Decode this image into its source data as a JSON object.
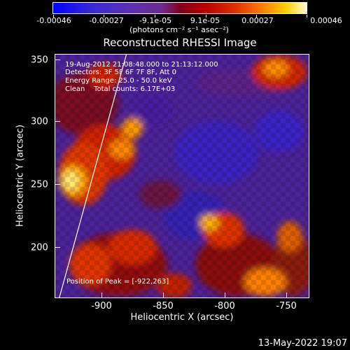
{
  "colorbar": {
    "ticks": [
      "-0.00046",
      "-0.00027",
      "-9.1e-05",
      "9.1e-05",
      "0.00027",
      "0.00046"
    ],
    "units": "(photons cm⁻² s⁻¹ asec⁻²)"
  },
  "title": "Reconstructed RHESSI Image",
  "annotations": {
    "line1": "19-Aug-2012 21:08:48.000 to 21:13:12.000",
    "line2": "Detectors: 3F 5F 6F 7F 8F, Att 0",
    "line3": "Energy Range: 25.0 - 50.0 keV",
    "line4": "Clean    Total counts: 6.17E+03",
    "peak": "Position of Peak = [-922,263]"
  },
  "axes": {
    "xlabel": "Heliocentric X (arcsec)",
    "ylabel": "Heliocentric Y (arcsec)",
    "xticks": [
      "-900",
      "-850",
      "-800",
      "-750"
    ],
    "yticks": [
      "350",
      "300",
      "250",
      "200"
    ]
  },
  "footer": "13-May-2022 19:07"
}
